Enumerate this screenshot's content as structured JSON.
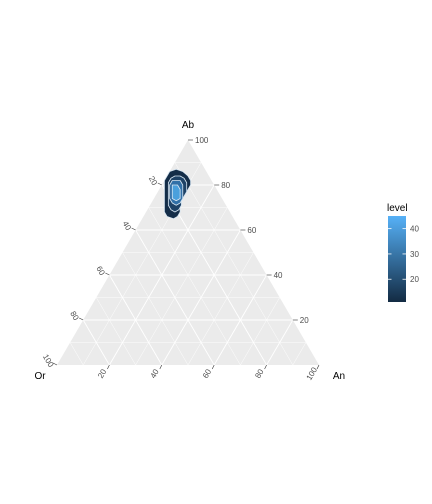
{
  "chart_data": {
    "type": "ternary_density",
    "axes": {
      "top": {
        "label": "Ab",
        "ticks": [
          "20",
          "40",
          "60",
          "80",
          "100"
        ]
      },
      "left": {
        "label": "Or",
        "ticks": [
          "20",
          "40",
          "60",
          "80",
          "100"
        ]
      },
      "right": {
        "label": "An",
        "ticks": [
          "20",
          "40",
          "60",
          "80",
          "100"
        ]
      }
    },
    "grid_step": 10,
    "panel_color": "#ebebeb",
    "grid_color": "#ffffff",
    "density_peak": {
      "Ab": 77,
      "Or": 17,
      "An": 6
    },
    "contours": [
      {
        "level": 12,
        "color": "#142d48",
        "points": [
          [
            87,
            11
          ],
          [
            86,
            9
          ],
          [
            84,
            8
          ],
          [
            82,
            8
          ],
          [
            80,
            9
          ],
          [
            78,
            11
          ],
          [
            76,
            13
          ],
          [
            74,
            15
          ],
          [
            72,
            17
          ],
          [
            70,
            18
          ],
          [
            68,
            19
          ],
          [
            66,
            21
          ],
          [
            65,
            23
          ],
          [
            66,
            25
          ],
          [
            68,
            25
          ],
          [
            70,
            24
          ],
          [
            72,
            23
          ],
          [
            74,
            22
          ],
          [
            76,
            21
          ],
          [
            78,
            20
          ],
          [
            80,
            19
          ],
          [
            82,
            18
          ],
          [
            84,
            16
          ],
          [
            86,
            14
          ]
        ]
      },
      {
        "level": 24,
        "color": "#1e4266",
        "points": [
          [
            84,
            11
          ],
          [
            83,
            10
          ],
          [
            81,
            10
          ],
          [
            79,
            11
          ],
          [
            77,
            12
          ],
          [
            75,
            14
          ],
          [
            73,
            16
          ],
          [
            71,
            17
          ],
          [
            69,
            19
          ],
          [
            68,
            21
          ],
          [
            69,
            22
          ],
          [
            71,
            22
          ],
          [
            73,
            21
          ],
          [
            75,
            20
          ],
          [
            77,
            19
          ],
          [
            79,
            18
          ],
          [
            81,
            17
          ],
          [
            83,
            15
          ],
          [
            84,
            13
          ]
        ]
      },
      {
        "level": 36,
        "color": "#3170a7",
        "points": [
          [
            82,
            12
          ],
          [
            80,
            12
          ],
          [
            78,
            13
          ],
          [
            76,
            14
          ],
          [
            74,
            15
          ],
          [
            72,
            17
          ],
          [
            71,
            19
          ],
          [
            72,
            20
          ],
          [
            74,
            20
          ],
          [
            76,
            19
          ],
          [
            78,
            18
          ],
          [
            80,
            17
          ],
          [
            82,
            15
          ]
        ]
      },
      {
        "level": 44,
        "color": "#4aa0dc",
        "points": [
          [
            80,
            14
          ],
          [
            78,
            14
          ],
          [
            76,
            15
          ],
          [
            74,
            16
          ],
          [
            73,
            18
          ],
          [
            74,
            19
          ],
          [
            76,
            18
          ],
          [
            78,
            17
          ],
          [
            80,
            16
          ]
        ]
      }
    ],
    "legend": {
      "title": "level",
      "ticks": [
        "20",
        "30",
        "40"
      ],
      "tick_values": [
        20,
        30,
        40
      ],
      "range": [
        11,
        45
      ],
      "low_color": "#132b43",
      "high_color": "#56b1f7"
    }
  }
}
